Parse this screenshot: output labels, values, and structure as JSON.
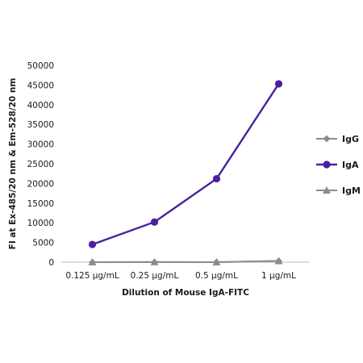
{
  "chart_data": {
    "type": "line",
    "categories": [
      "0.125 µg/mL",
      "0.25 µg/mL",
      "0.5 µg/mL",
      "1 µg/mL"
    ],
    "series": [
      {
        "name": "IgG",
        "values": [
          0,
          0,
          0,
          300
        ],
        "color": "#8c8c8c",
        "marker": "diamond"
      },
      {
        "name": "IgA",
        "values": [
          4500,
          10200,
          21200,
          45300
        ],
        "color": "#4b1fa0",
        "marker": "circle"
      },
      {
        "name": "IgM",
        "values": [
          0,
          50,
          0,
          300
        ],
        "color": "#8c8c8c",
        "marker": "triangle"
      }
    ],
    "xlabel": "Dilution of Mouse IgA-FITC",
    "ylabel": "FI at Ex-485/20 nm & Em-528/20 nm",
    "ylim": [
      0,
      50000
    ],
    "yticks": [
      0,
      5000,
      10000,
      15000,
      20000,
      25000,
      30000,
      35000,
      40000,
      45000,
      50000
    ],
    "grid": false,
    "legend_position": "right"
  }
}
